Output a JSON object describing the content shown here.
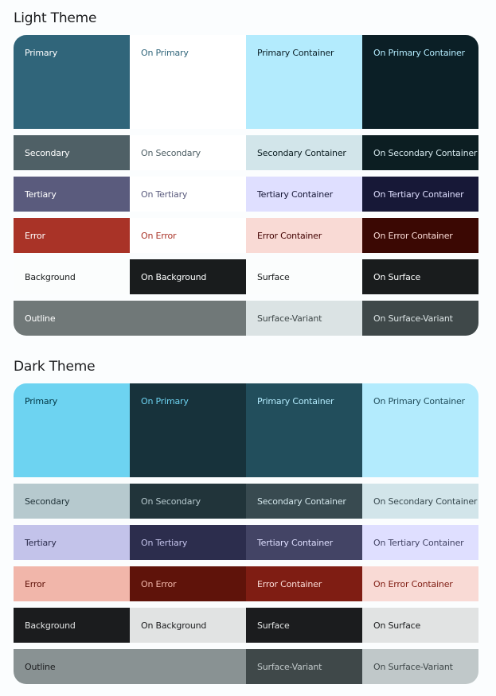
{
  "themes": [
    {
      "title": "Light Theme",
      "rows": [
        [
          {
            "label": "Primary",
            "bg": "#30657a",
            "fg": "#ffffff"
          },
          {
            "label": "On Primary",
            "bg": "#ffffff",
            "fg": "#30657a"
          },
          {
            "label": "Primary Container",
            "bg": "#b3ebfd",
            "fg": "#0b1f26"
          },
          {
            "label": "On Primary Container",
            "bg": "#0b1f26",
            "fg": "#b3ebfd"
          }
        ],
        [
          {
            "label": "Secondary",
            "bg": "#4f6066",
            "fg": "#ffffff"
          },
          {
            "label": "On Secondary",
            "bg": "#ffffff",
            "fg": "#4f6066"
          },
          {
            "label": "Secondary Container",
            "bg": "#d2e5ea",
            "fg": "#0c1e22"
          },
          {
            "label": "On Secondary Container",
            "bg": "#0c1e22",
            "fg": "#d2e5ea"
          }
        ],
        [
          {
            "label": "Tertiary",
            "bg": "#5a5b7d",
            "fg": "#ffffff"
          },
          {
            "label": "On Tertiary",
            "bg": "#ffffff",
            "fg": "#5a5b7d"
          },
          {
            "label": "Tertiary Container",
            "bg": "#dfdfff",
            "fg": "#171837"
          },
          {
            "label": "On Tertiary Container",
            "bg": "#171837",
            "fg": "#dfdfff"
          }
        ],
        [
          {
            "label": "Error",
            "bg": "#a93327",
            "fg": "#ffffff"
          },
          {
            "label": "On Error",
            "bg": "#ffffff",
            "fg": "#a93327"
          },
          {
            "label": "Error Container",
            "bg": "#f9dad5",
            "fg": "#410000"
          },
          {
            "label": "On Error Container",
            "bg": "#3b0803",
            "fg": "#f9dad5"
          }
        ],
        [
          {
            "label": "Background",
            "bg": "#fbfdfd",
            "fg": "#191c1d"
          },
          {
            "label": "On Background",
            "bg": "#191c1d",
            "fg": "#fbfdfd"
          },
          {
            "label": "Surface",
            "bg": "#fbfdfd",
            "fg": "#191c1d"
          },
          {
            "label": "On Surface",
            "bg": "#191c1d",
            "fg": "#fbfdfd"
          }
        ],
        [
          {
            "label": "Outline",
            "bg": "#707878",
            "fg": "#ffffff",
            "span": 2
          },
          {
            "label": "Surface-Variant",
            "bg": "#dbe3e4",
            "fg": "#3f4849"
          },
          {
            "label": "On Surface-Variant",
            "bg": "#3f4849",
            "fg": "#dbe3e4"
          }
        ]
      ]
    },
    {
      "title": "Dark Theme",
      "rows": [
        [
          {
            "label": "Primary",
            "bg": "#6dd3f1",
            "fg": "#003543"
          },
          {
            "label": "On Primary",
            "bg": "#17323b",
            "fg": "#6dd3f1"
          },
          {
            "label": "Primary Container",
            "bg": "#224e5c",
            "fg": "#b3ebfd"
          },
          {
            "label": "On Primary Container",
            "bg": "#b3ebfd",
            "fg": "#224e5c"
          }
        ],
        [
          {
            "label": "Secondary",
            "bg": "#b6c9ce",
            "fg": "#21343a"
          },
          {
            "label": "On Secondary",
            "bg": "#21343a",
            "fg": "#b6c9ce"
          },
          {
            "label": "Secondary Container",
            "bg": "#384a50",
            "fg": "#d2e5ea"
          },
          {
            "label": "On Secondary Container",
            "bg": "#d2e5ea",
            "fg": "#384a50"
          }
        ],
        [
          {
            "label": "Tertiary",
            "bg": "#c3c3ea",
            "fg": "#2c2d4d"
          },
          {
            "label": "On Tertiary",
            "bg": "#2c2d4d",
            "fg": "#c3c3ea"
          },
          {
            "label": "Tertiary Container",
            "bg": "#434465",
            "fg": "#dfdfff"
          },
          {
            "label": "On Tertiary Container",
            "bg": "#dfdfff",
            "fg": "#434465"
          }
        ],
        [
          {
            "label": "Error",
            "bg": "#f1b6aa",
            "fg": "#5f130a"
          },
          {
            "label": "On Error",
            "bg": "#5f130a",
            "fg": "#f1b6aa"
          },
          {
            "label": "Error Container",
            "bg": "#7f1d13",
            "fg": "#f9dad5"
          },
          {
            "label": "On Error Container",
            "bg": "#f9dad5",
            "fg": "#7f1d13"
          }
        ],
        [
          {
            "label": "Background",
            "bg": "#1b1c1e",
            "fg": "#e1e3e3"
          },
          {
            "label": "On Background",
            "bg": "#e1e3e3",
            "fg": "#1b1c1e"
          },
          {
            "label": "Surface",
            "bg": "#1b1c1e",
            "fg": "#e1e3e3"
          },
          {
            "label": "On Surface",
            "bg": "#e1e3e3",
            "fg": "#1b1c1e"
          }
        ],
        [
          {
            "label": "Outline",
            "bg": "#899293",
            "fg": "#1b1c1e",
            "span": 2
          },
          {
            "label": "Surface-Variant",
            "bg": "#3f4849",
            "fg": "#c0c8c9"
          },
          {
            "label": "On Surface-Variant",
            "bg": "#c0c8c9",
            "fg": "#3f4849"
          }
        ]
      ]
    }
  ]
}
